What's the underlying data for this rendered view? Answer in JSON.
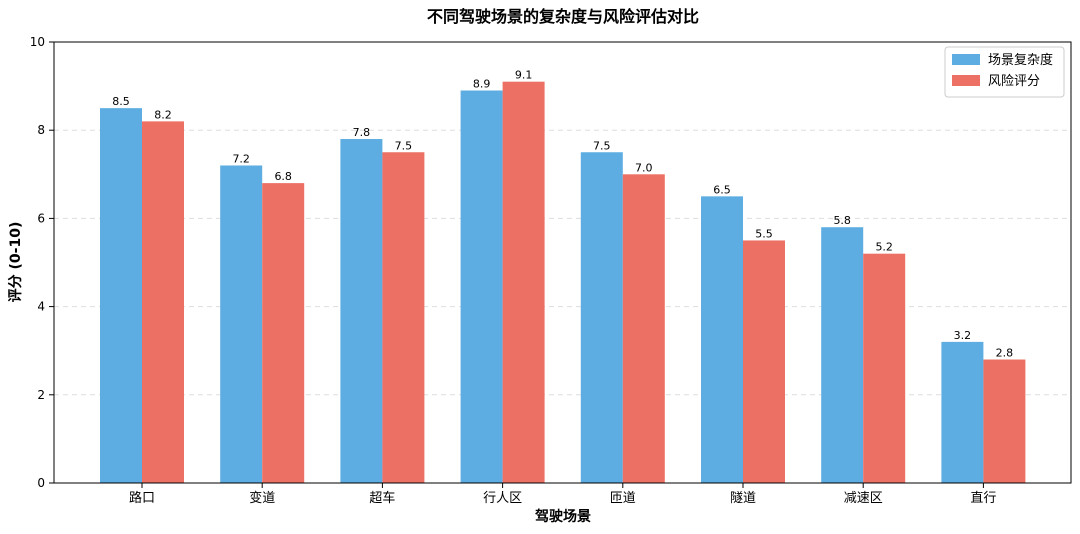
{
  "chart_data": {
    "type": "bar",
    "title": "不同驾驶场景的复杂度与风险评估对比",
    "xlabel": "驾驶场景",
    "ylabel": "评分 (0-10)",
    "ylim": [
      0,
      10
    ],
    "yticks": [
      0,
      2,
      4,
      6,
      8,
      10
    ],
    "grid": true,
    "legend_position": "top-right",
    "categories": [
      "路口",
      "变道",
      "超车",
      "行人区",
      "匝道",
      "隧道",
      "减速区",
      "直行"
    ],
    "series": [
      {
        "name": "场景复杂度",
        "color": "#5DADE2",
        "values": [
          8.5,
          7.2,
          7.8,
          8.9,
          7.5,
          6.5,
          5.8,
          3.2
        ]
      },
      {
        "name": "风险评分",
        "color": "#EC7063",
        "values": [
          8.2,
          6.8,
          7.5,
          9.1,
          7.0,
          5.5,
          5.2,
          2.8
        ]
      }
    ]
  }
}
